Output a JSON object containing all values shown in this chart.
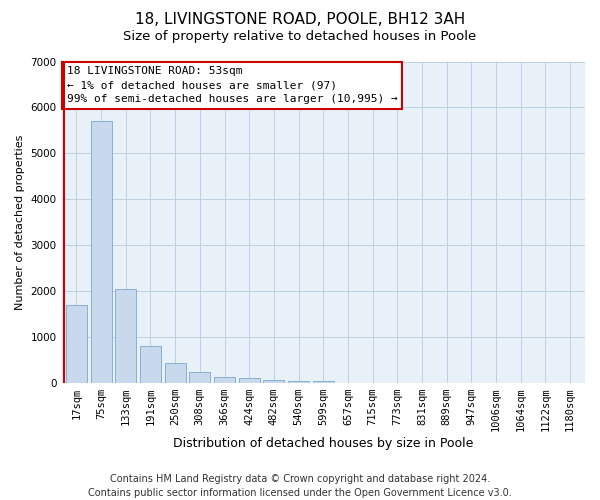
{
  "title1": "18, LIVINGSTONE ROAD, POOLE, BH12 3AH",
  "title2": "Size of property relative to detached houses in Poole",
  "xlabel": "Distribution of detached houses by size in Poole",
  "ylabel": "Number of detached properties",
  "bar_color": "#c8d9ee",
  "bar_edge_color": "#7ba7cc",
  "annotation_box_color": "#cc0000",
  "vline_color": "#cc0000",
  "grid_color": "#c0cfe0",
  "background_color": "#e8f0f8",
  "categories": [
    "17sqm",
    "75sqm",
    "133sqm",
    "191sqm",
    "250sqm",
    "308sqm",
    "366sqm",
    "424sqm",
    "482sqm",
    "540sqm",
    "599sqm",
    "657sqm",
    "715sqm",
    "773sqm",
    "831sqm",
    "889sqm",
    "947sqm",
    "1006sqm",
    "1064sqm",
    "1122sqm",
    "1180sqm"
  ],
  "values": [
    1700,
    5700,
    2050,
    800,
    430,
    230,
    130,
    100,
    70,
    40,
    30,
    0,
    0,
    0,
    0,
    0,
    0,
    0,
    0,
    0,
    0
  ],
  "annotation_line1": "18 LIVINGSTONE ROAD: 53sqm",
  "annotation_line2": "← 1% of detached houses are smaller (97)",
  "annotation_line3": "99% of semi-detached houses are larger (10,995) →",
  "vline_x": -0.5,
  "ylim": [
    0,
    7000
  ],
  "yticks": [
    0,
    1000,
    2000,
    3000,
    4000,
    5000,
    6000,
    7000
  ],
  "footnote": "Contains HM Land Registry data © Crown copyright and database right 2024.\nContains public sector information licensed under the Open Government Licence v3.0.",
  "title1_fontsize": 11,
  "title2_fontsize": 9.5,
  "xlabel_fontsize": 9,
  "ylabel_fontsize": 8,
  "tick_fontsize": 7.5,
  "annot_fontsize": 8,
  "footnote_fontsize": 7
}
